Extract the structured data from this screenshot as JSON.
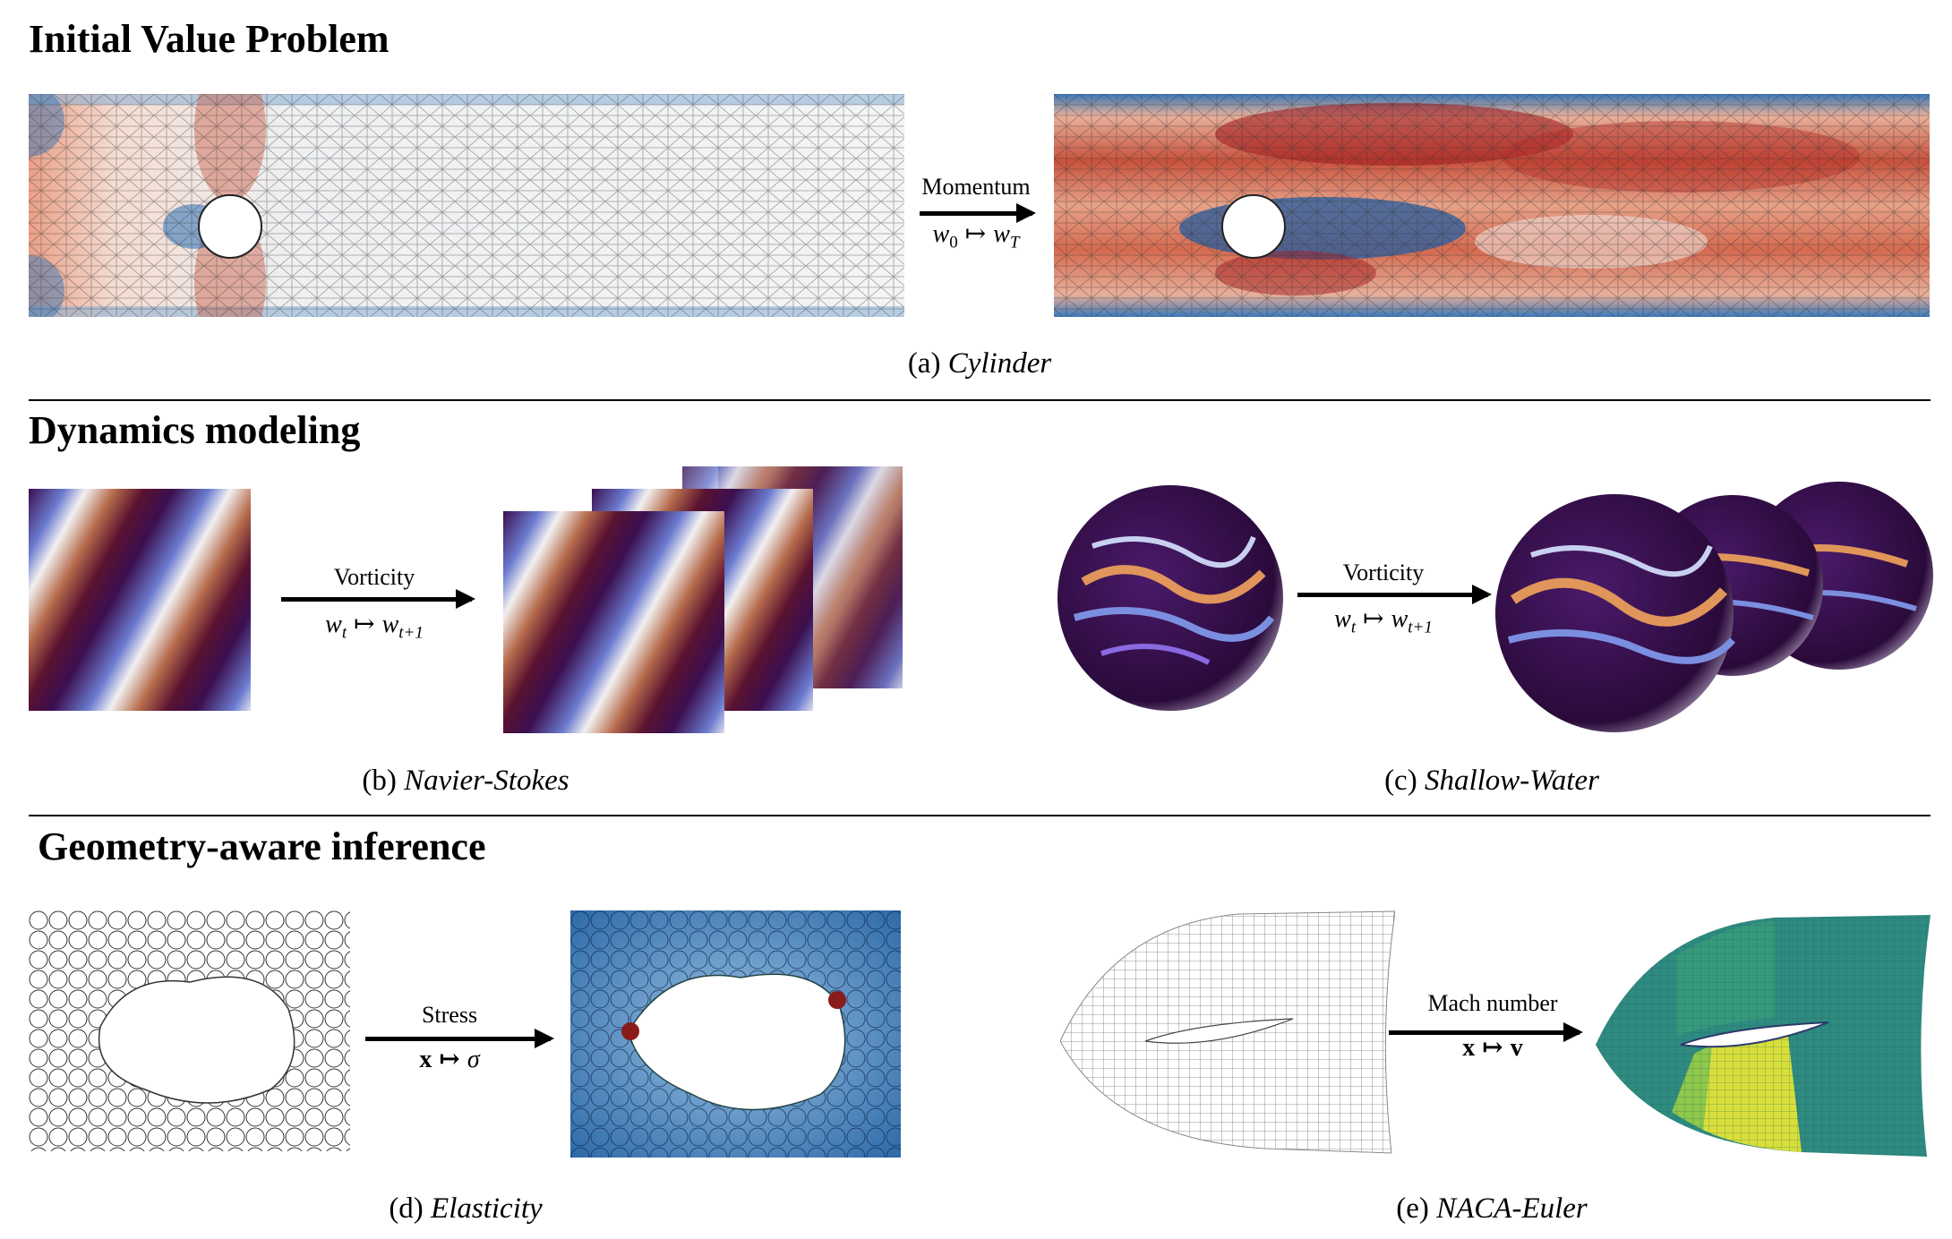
{
  "sections": [
    {
      "title": "Initial Value Problem"
    },
    {
      "title": "Dynamics modeling"
    },
    {
      "title": "Geometry-aware inference"
    }
  ],
  "panels": {
    "a": {
      "label": "(a)",
      "name": "Cylinder",
      "arrow_label": "Momentum",
      "math": {
        "lhs": "w",
        "lhs_sub": "0",
        "map": "↦",
        "rhs": "w",
        "rhs_sub": "T"
      }
    },
    "b": {
      "label": "(b)",
      "name": "Navier-Stokes",
      "arrow_label": "Vorticity",
      "math": {
        "lhs": "w",
        "lhs_sub": "t",
        "map": "↦",
        "rhs": "w",
        "rhs_sub": "t+1"
      }
    },
    "c": {
      "label": "(c)",
      "name": "Shallow-Water",
      "arrow_label": "Vorticity",
      "math": {
        "lhs": "w",
        "lhs_sub": "t",
        "map": "↦",
        "rhs": "w",
        "rhs_sub": "t+1"
      }
    },
    "d": {
      "label": "(d)",
      "name": "Elasticity",
      "arrow_label": "Stress",
      "math": {
        "lhs": "x",
        "map": "↦",
        "rhs": "σ"
      }
    },
    "e": {
      "label": "(e)",
      "name": "NACA-Euler",
      "arrow_label": "Mach number",
      "math": {
        "lhs": "x",
        "map": "↦",
        "rhs": "v"
      }
    }
  },
  "colors": {
    "red": "#b2182b",
    "blue": "#2166ac",
    "purple": "#3b0f4f",
    "teal": "#2a8a84",
    "yellow": "#e3e33a"
  }
}
